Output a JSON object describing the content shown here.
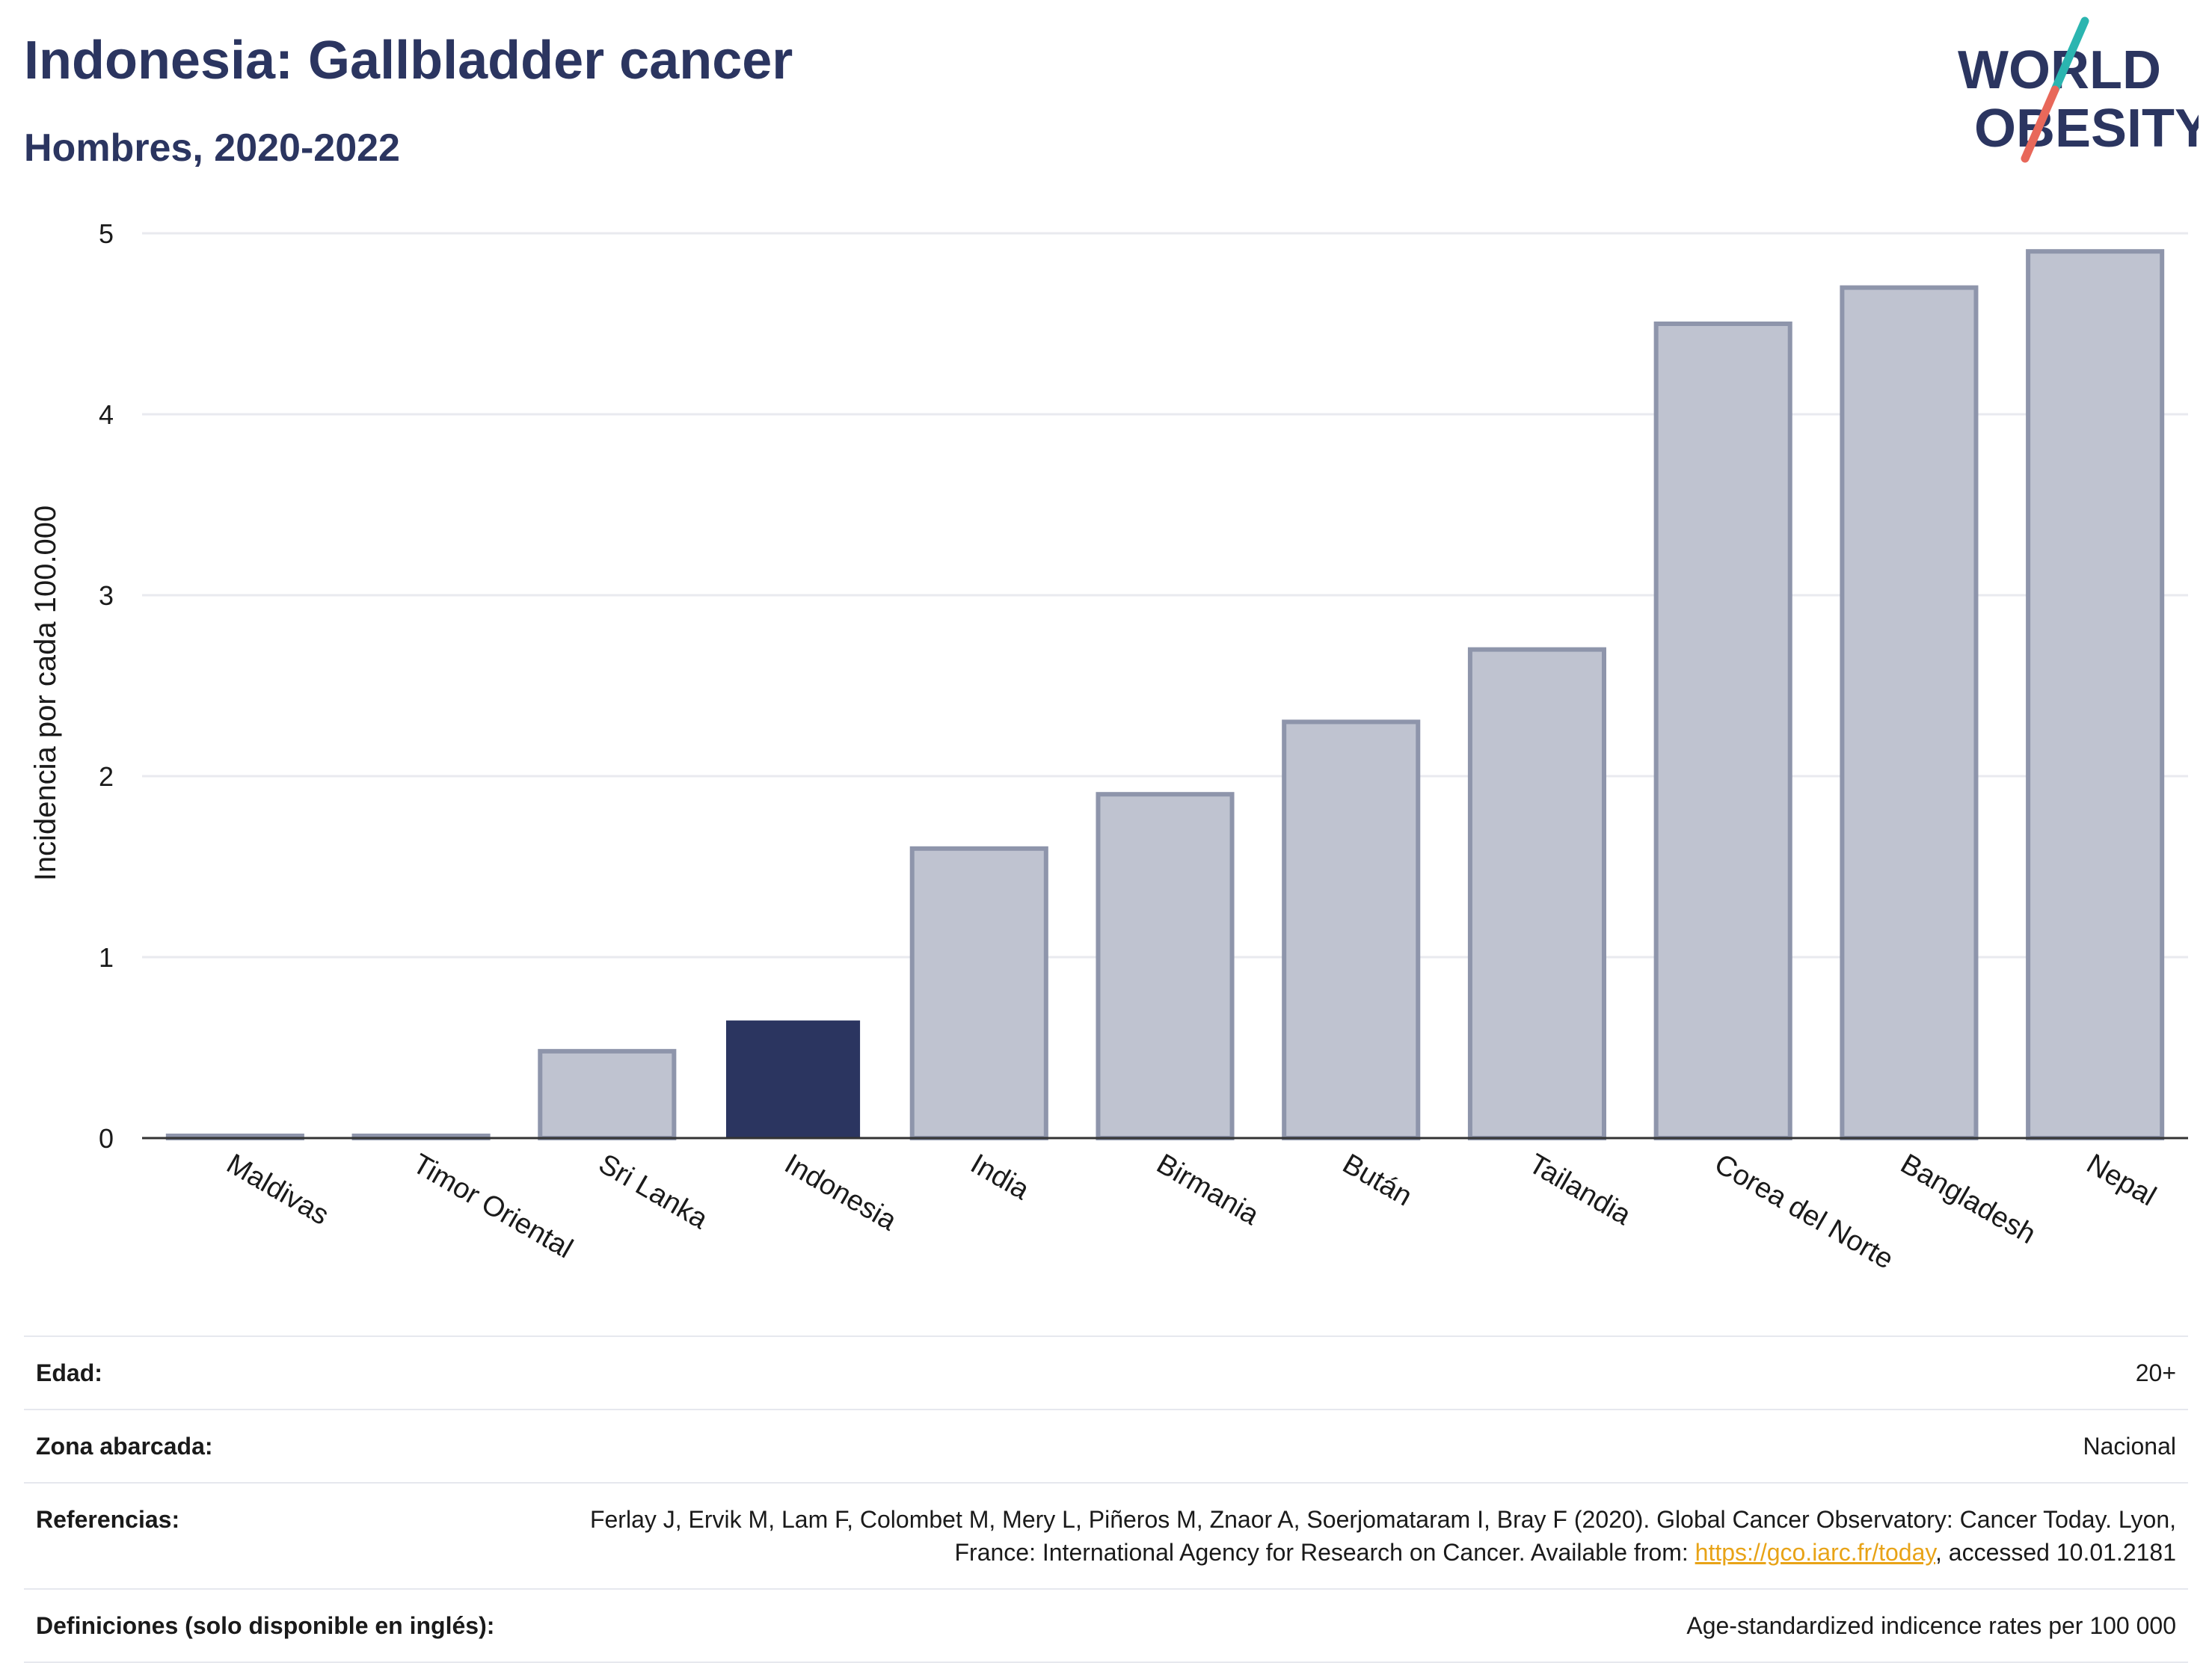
{
  "header": {
    "title": "Indonesia: Gallbladder cancer",
    "subtitle": "Hombres, 2020-2022"
  },
  "logo": {
    "line1": "WORLD",
    "line2": "OBESITY",
    "colors": {
      "text": "#2b3560",
      "slash_top": "#2bb5b0",
      "slash_bottom": "#e8685a"
    }
  },
  "chart_data": {
    "type": "bar",
    "title": "",
    "xlabel": "",
    "ylabel": "Incidencia por cada 100.000",
    "ylim": [
      0,
      5
    ],
    "yticks": [
      "0",
      "1",
      "2",
      "3",
      "4",
      "5"
    ],
    "grid": true,
    "legend": "none",
    "categories": [
      "Maldivas",
      "Timor Oriental",
      "Sri Lanka",
      "Indonesia",
      "India",
      "Birmania",
      "Bután",
      "Tailandia",
      "Corea del Norte",
      "Bangladesh",
      "Nepal"
    ],
    "values": [
      0.01,
      0.01,
      0.48,
      0.65,
      1.6,
      1.9,
      2.3,
      2.7,
      4.5,
      4.7,
      4.9
    ],
    "highlight": "Indonesia",
    "colors": {
      "highlight": "#2b3560",
      "bar_fill": "#bfc3d0",
      "bar_stroke": "#8e95ab",
      "grid": "#e9eaef",
      "axis": "#333333"
    }
  },
  "meta": {
    "rows": [
      {
        "label": "Edad:",
        "value": "20+"
      },
      {
        "label": "Zona abarcada:",
        "value": "Nacional"
      },
      {
        "label": "Referencias:",
        "value_before": "Ferlay J, Ervik M, Lam F, Colombet M, Mery L, Piñeros M, Znaor A, Soerjomataram I, Bray F (2020). Global Cancer Observatory: Cancer Today. Lyon, France: International Agency for Research on Cancer. Available from: ",
        "link": "https://gco.iarc.fr/today",
        "value_after": ", accessed 10.01.2181"
      },
      {
        "label": "Definiciones (solo disponible en inglés):",
        "value": "Age-standardized indicence rates per 100 000"
      }
    ]
  }
}
